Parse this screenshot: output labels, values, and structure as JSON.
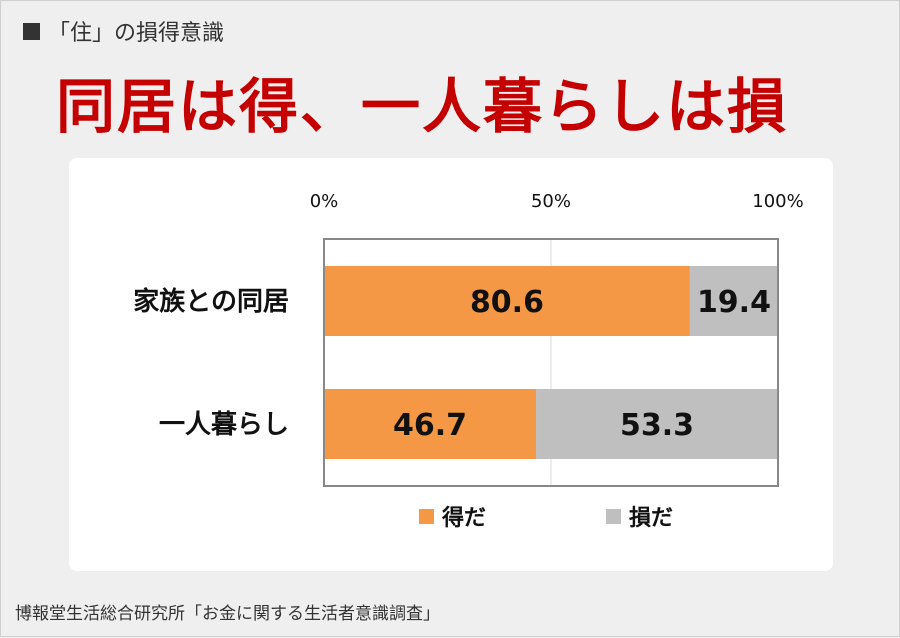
{
  "kicker": "「住」の損得意識",
  "headline": "同居は得、一人暮らしは損",
  "source": "博報堂生活総合研究所「お金に関する生活者意識調査」",
  "colors": {
    "gain": "#F59846",
    "loss": "#BFBFBF",
    "headline": "#C40000"
  },
  "chart_data": {
    "type": "bar",
    "orientation": "horizontal",
    "stacked": true,
    "categories": [
      "家族との同居",
      "一人暮らし"
    ],
    "series": [
      {
        "name": "得だ",
        "values": [
          80.6,
          46.7
        ],
        "labels": [
          "80.6",
          "46.7"
        ]
      },
      {
        "name": "損だ",
        "values": [
          19.4,
          53.3
        ],
        "labels": [
          "19.4",
          "53.3"
        ]
      }
    ],
    "xlim": [
      0,
      100
    ],
    "ticks": [
      "0%",
      "50%",
      "100%"
    ],
    "legend": "bottom"
  }
}
